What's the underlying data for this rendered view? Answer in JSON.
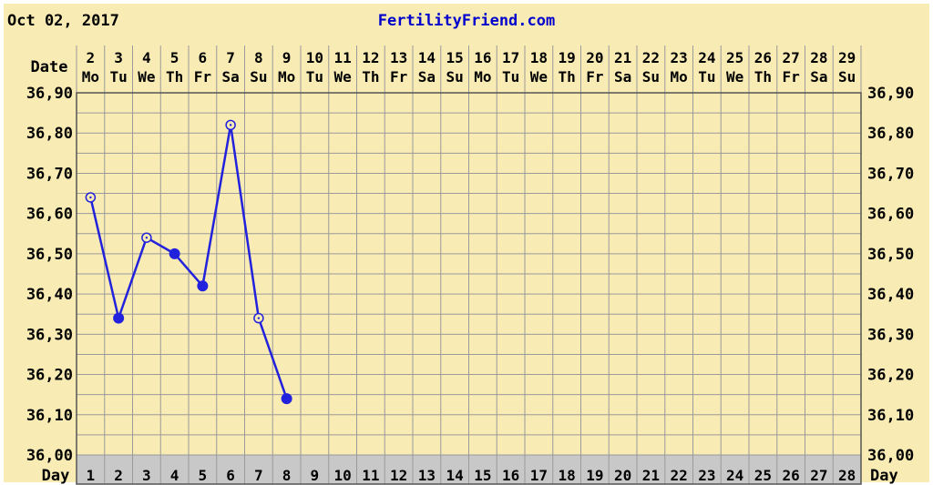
{
  "header": {
    "date": "Oct 02, 2017",
    "site": "FertilityFriend.com"
  },
  "labels": {
    "date_row": "Date",
    "day_row": "Day"
  },
  "colors": {
    "background": "#F8EBB4",
    "grid": "#9A9A9A",
    "line": "#2222DD",
    "site_text": "#0000CC",
    "day_row_bg": "#C8C8C8"
  },
  "chart_data": {
    "type": "line",
    "dates": [
      "2",
      "3",
      "4",
      "5",
      "6",
      "7",
      "8",
      "9",
      "10",
      "11",
      "12",
      "13",
      "14",
      "15",
      "16",
      "17",
      "18",
      "19",
      "20",
      "21",
      "22",
      "23",
      "24",
      "25",
      "26",
      "27",
      "28",
      "29"
    ],
    "weekdays": [
      "Mo",
      "Tu",
      "We",
      "Th",
      "Fr",
      "Sa",
      "Su",
      "Mo",
      "Tu",
      "We",
      "Th",
      "Fr",
      "Sa",
      "Su",
      "Mo",
      "Tu",
      "We",
      "Th",
      "Fr",
      "Sa",
      "Su",
      "Mo",
      "Tu",
      "We",
      "Th",
      "Fr",
      "Sa",
      "Su"
    ],
    "days": [
      "1",
      "2",
      "3",
      "4",
      "5",
      "6",
      "7",
      "8",
      "9",
      "10",
      "11",
      "12",
      "13",
      "14",
      "15",
      "16",
      "17",
      "18",
      "19",
      "20",
      "21",
      "22",
      "23",
      "24",
      "25",
      "26",
      "27",
      "28"
    ],
    "y_ticks": [
      "36,90",
      "36,80",
      "36,70",
      "36,60",
      "36,50",
      "36,40",
      "36,30",
      "36,20",
      "36,10",
      "36,00"
    ],
    "ylim": [
      36.0,
      36.9
    ],
    "grid": true,
    "series": [
      {
        "points": [
          {
            "day": 1,
            "temp": 36.64,
            "marker": "open"
          },
          {
            "day": 2,
            "temp": 36.34,
            "marker": "filled"
          },
          {
            "day": 3,
            "temp": 36.54,
            "marker": "open"
          },
          {
            "day": 4,
            "temp": 36.5,
            "marker": "filled"
          },
          {
            "day": 5,
            "temp": 36.42,
            "marker": "filled"
          },
          {
            "day": 6,
            "temp": 36.82,
            "marker": "open"
          },
          {
            "day": 7,
            "temp": 36.34,
            "marker": "open"
          },
          {
            "day": 8,
            "temp": 36.14,
            "marker": "filled"
          }
        ]
      }
    ]
  }
}
